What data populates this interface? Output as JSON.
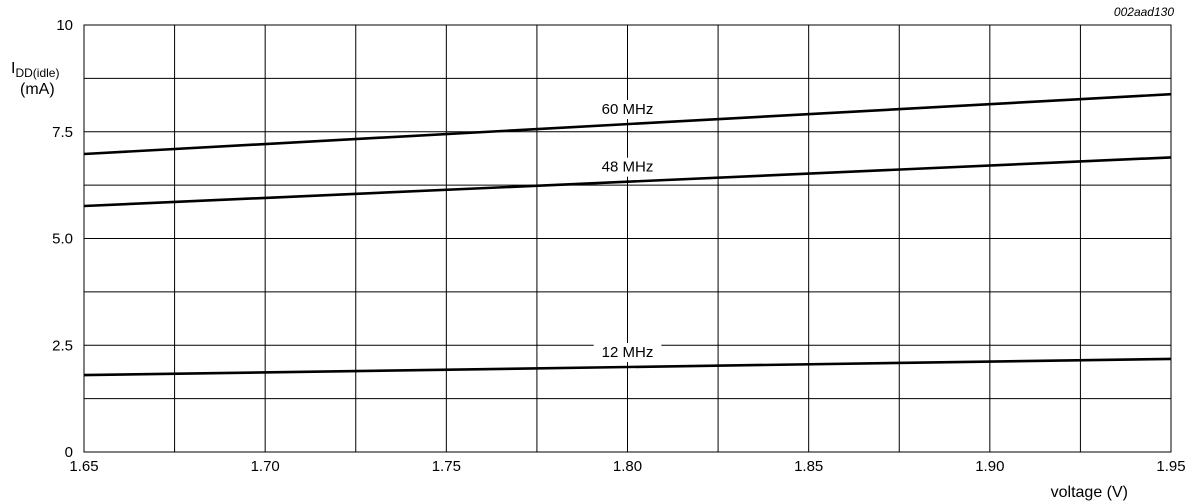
{
  "figure_id": "002aad130",
  "chart_data": {
    "type": "line",
    "title": "",
    "xlabel": "voltage (V)",
    "ylabel": {
      "main": "I",
      "sub": "DD(idle)",
      "unit": "(mA)"
    },
    "xlim": [
      1.65,
      1.95
    ],
    "ylim": [
      0,
      10
    ],
    "x_ticks": [
      "1.65",
      "1.70",
      "1.75",
      "1.80",
      "1.85",
      "1.90",
      "1.95"
    ],
    "y_ticks": [
      {
        "value": 0,
        "label": "0"
      },
      {
        "value": 2.5,
        "label": "2.5"
      },
      {
        "value": 5,
        "label": "5.0"
      },
      {
        "value": 7.5,
        "label": "7.5"
      },
      {
        "value": 10,
        "label": "10"
      }
    ],
    "x_grid_step": 0.025,
    "y_grid_step": 1.25,
    "grid": true,
    "legend": "none",
    "series": [
      {
        "name": "60 MHz",
        "x": [
          1.65,
          1.95
        ],
        "y": [
          6.98,
          8.38
        ],
        "label_x": 1.8
      },
      {
        "name": "48 MHz",
        "x": [
          1.65,
          1.95
        ],
        "y": [
          5.76,
          6.9
        ],
        "label_x": 1.8
      },
      {
        "name": "12 MHz",
        "x": [
          1.65,
          1.95
        ],
        "y": [
          1.8,
          2.18
        ],
        "label_x": 1.8
      }
    ]
  }
}
